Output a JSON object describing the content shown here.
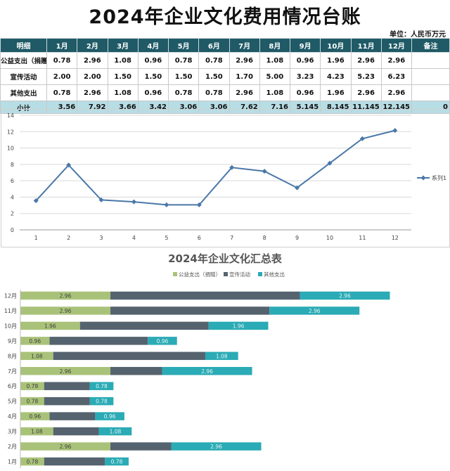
{
  "title": "2024年企业文化费用情况台账",
  "unit": "单位：人民币万元",
  "table": {
    "headers": [
      "明细",
      "1月",
      "2月",
      "3月",
      "4月",
      "5月",
      "6月",
      "7月",
      "8月",
      "9月",
      "10月",
      "11月",
      "12月",
      "备注"
    ],
    "rows": [
      {
        "label": "公益支出（捐赠）",
        "values": [
          "0.78",
          "2.96",
          "1.08",
          "0.96",
          "0.78",
          "0.78",
          "2.96",
          "1.08",
          "0.96",
          "1.96",
          "2.96",
          "2.96",
          ""
        ]
      },
      {
        "label": "宣传活动",
        "values": [
          "2.00",
          "2.00",
          "1.50",
          "1.50",
          "1.50",
          "1.50",
          "1.70",
          "5.00",
          "3.23",
          "4.23",
          "5.23",
          "6.23",
          ""
        ]
      },
      {
        "label": "其他支出",
        "values": [
          "0.78",
          "2.96",
          "1.08",
          "0.96",
          "0.78",
          "0.78",
          "2.96",
          "1.08",
          "0.96",
          "1.96",
          "2.96",
          "2.96",
          ""
        ]
      },
      {
        "label": "小计",
        "values": [
          "3.56",
          "7.92",
          "3.66",
          "3.42",
          "3.06",
          "3.06",
          "7.62",
          "7.16",
          "5.145",
          "8.145",
          "11.145",
          "12.145",
          "0"
        ]
      }
    ]
  },
  "chart_data": [
    {
      "type": "line",
      "x": [
        1,
        2,
        3,
        4,
        5,
        6,
        7,
        8,
        9,
        10,
        11,
        12
      ],
      "series": [
        {
          "name": "系列1",
          "values": [
            3.56,
            7.92,
            3.66,
            3.42,
            3.06,
            3.06,
            7.62,
            7.16,
            5.145,
            8.145,
            11.145,
            12.145
          ]
        }
      ],
      "ylim": [
        0,
        14
      ],
      "yticks": [
        0,
        2,
        4,
        6,
        8,
        10,
        12,
        14
      ],
      "grid": true,
      "legend": "right",
      "color": "#4a78a8"
    },
    {
      "type": "bar",
      "orientation": "horizontal",
      "stacked": true,
      "title": "2024年企业文化汇总表",
      "categories": [
        "12月",
        "11月",
        "10月",
        "9月",
        "8月",
        "7月",
        "6月",
        "5月",
        "4月",
        "3月",
        "2月",
        "1月"
      ],
      "series": [
        {
          "name": "公益支出（捐赠）",
          "color": "#a9c279",
          "values": [
            2.96,
            2.96,
            1.96,
            0.96,
            1.08,
            2.96,
            0.78,
            0.78,
            0.96,
            1.08,
            2.96,
            0.78
          ]
        },
        {
          "name": "宣传活动",
          "color": "#55636f",
          "values": [
            6.23,
            5.23,
            4.23,
            3.23,
            5.0,
            1.7,
            1.5,
            1.5,
            1.5,
            1.5,
            2.0,
            2.0
          ]
        },
        {
          "name": "其他支出",
          "color": "#2aabb5",
          "values": [
            2.96,
            2.96,
            1.96,
            0.96,
            1.08,
            2.96,
            0.78,
            0.78,
            0.96,
            1.08,
            2.96,
            0.78
          ]
        }
      ],
      "data_labels": [
        [
          "2.96",
          "",
          "2.96"
        ],
        [
          "2.96",
          "",
          "2.96"
        ],
        [
          "1.96",
          "",
          "1.96"
        ],
        [
          "0.96",
          "",
          "0.96"
        ],
        [
          "1.08",
          "",
          "1.08"
        ],
        [
          "2.96",
          "",
          "2.96"
        ],
        [
          "0.78",
          "",
          "0.78"
        ],
        [
          "0.78",
          "",
          "0.78"
        ],
        [
          "0.96",
          "",
          "0.96"
        ],
        [
          "1.08",
          "",
          "1.08"
        ],
        [
          "2.96",
          "",
          "2.96"
        ],
        [
          "0.78",
          "",
          "0.78"
        ]
      ],
      "legend": "top",
      "grid": false
    }
  ]
}
